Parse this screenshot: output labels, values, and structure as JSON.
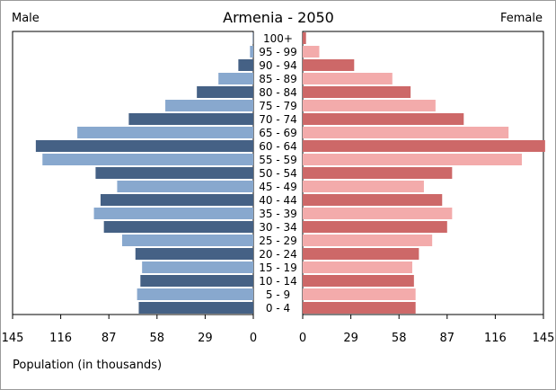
{
  "chart_data": {
    "type": "bar",
    "title": "Armenia - 2050",
    "left_label": "Male",
    "right_label": "Female",
    "xlabel": "Population (in thousands)",
    "xlim": [
      0,
      145
    ],
    "ticks": [
      145,
      116,
      87,
      58,
      29,
      0
    ],
    "ticks_right": [
      0,
      29,
      58,
      87,
      116,
      145
    ],
    "categories": [
      "100+",
      "95 - 99",
      "90 - 94",
      "85 - 89",
      "80 - 84",
      "75 - 79",
      "70 - 74",
      "65 - 69",
      "60 - 64",
      "55 - 59",
      "50 - 54",
      "45 - 49",
      "40 - 44",
      "35 - 39",
      "30 - 34",
      "25 - 29",
      "20 - 24",
      "15 - 19",
      "10 - 14",
      "5 - 9",
      "0 - 4"
    ],
    "series": [
      {
        "name": "Male",
        "values": [
          0.3,
          2,
          9,
          21,
          34,
          53,
          75,
          106,
          131,
          127,
          95,
          82,
          92,
          96,
          90,
          79,
          71,
          67,
          68,
          70,
          69
        ]
      },
      {
        "name": "Female",
        "values": [
          2,
          10,
          31,
          54,
          65,
          80,
          97,
          124,
          146,
          132,
          90,
          73,
          84,
          90,
          87,
          78,
          70,
          66,
          67,
          68,
          68
        ]
      }
    ],
    "colors": {
      "male_dark": "#456185",
      "male_light": "#88a8ce",
      "female_dark": "#cd6868",
      "female_light": "#f3abab"
    },
    "grid": false
  }
}
